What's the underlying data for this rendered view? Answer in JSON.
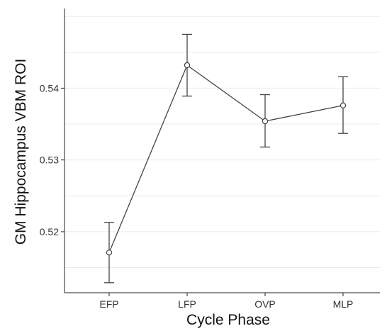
{
  "chart_data": {
    "type": "line",
    "title": "",
    "xlabel": "Cycle Phase",
    "ylabel": "GM Hippocampus VBM ROI",
    "categories": [
      "EFP",
      "LFP",
      "OVP",
      "MLP"
    ],
    "series": [
      {
        "values": [
          0.5171,
          0.5432,
          0.5354,
          0.5376
        ],
        "error_low": [
          0.5129,
          0.5389,
          0.5318,
          0.5337
        ],
        "error_high": [
          0.5213,
          0.5475,
          0.5391,
          0.5416
        ]
      }
    ],
    "ylim": [
      0.5115,
      0.5511
    ],
    "yticks": [
      "0.52",
      "0.53",
      "0.54"
    ],
    "ytick_values": [
      0.52,
      0.53,
      0.54
    ],
    "grid": true,
    "legend": "none",
    "colors": {
      "line": "#444444",
      "marker_fill": "#ffffff",
      "grid": "#ebebeb",
      "axis": "#222222"
    }
  }
}
